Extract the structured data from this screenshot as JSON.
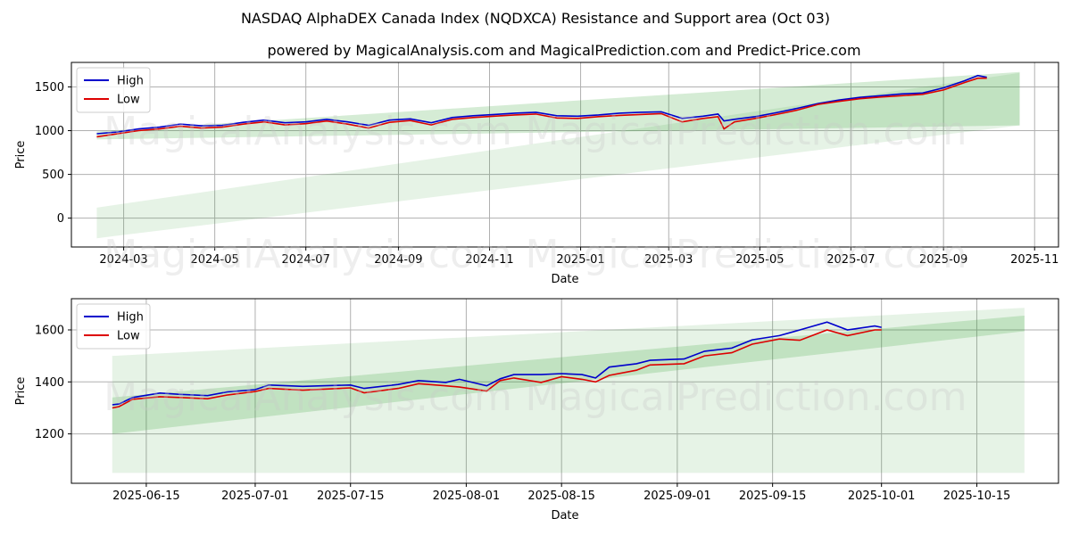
{
  "title": "NASDAQ AlphaDEX Canada Index (NQDXCA) Resistance and Support area (Oct 03)",
  "subtitle": "powered by MagicalAnalysis.com and MagicalPrediction.com and Predict-Price.com",
  "watermarks": [
    "MagicalAnalysis.com",
    "MagicalPrediction.com"
  ],
  "colors": {
    "high": "#0000cc",
    "low": "#dd0000",
    "band": "#2e9e2e"
  },
  "chart_data": [
    {
      "type": "line",
      "xlabel": "Date",
      "ylabel": "Price",
      "xlim": [
        "2024-01-26",
        "2025-11-17"
      ],
      "ylim": [
        -330,
        1780
      ],
      "x_ticks": [
        {
          "date": "2024-03-01",
          "label": "2024-03"
        },
        {
          "date": "2024-05-01",
          "label": "2024-05"
        },
        {
          "date": "2024-07-01",
          "label": "2024-07"
        },
        {
          "date": "2024-09-01",
          "label": "2024-09"
        },
        {
          "date": "2024-11-01",
          "label": "2024-11"
        },
        {
          "date": "2025-01-01",
          "label": "2025-01"
        },
        {
          "date": "2025-03-01",
          "label": "2025-03"
        },
        {
          "date": "2025-05-01",
          "label": "2025-05"
        },
        {
          "date": "2025-07-01",
          "label": "2025-07"
        },
        {
          "date": "2025-09-01",
          "label": "2025-09"
        },
        {
          "date": "2025-11-01",
          "label": "2025-11"
        }
      ],
      "y_ticks": [
        0,
        500,
        1000,
        1500
      ],
      "grid": true,
      "legend": "top-left",
      "series": [
        {
          "name": "High",
          "x": [
            "2024-02-12",
            "2024-02-26",
            "2024-03-11",
            "2024-03-25",
            "2024-04-08",
            "2024-04-22",
            "2024-05-06",
            "2024-05-20",
            "2024-06-03",
            "2024-06-17",
            "2024-07-01",
            "2024-07-15",
            "2024-07-29",
            "2024-08-12",
            "2024-08-26",
            "2024-09-09",
            "2024-09-23",
            "2024-10-07",
            "2024-10-21",
            "2024-11-04",
            "2024-11-18",
            "2024-12-02",
            "2024-12-16",
            "2024-12-30",
            "2025-01-13",
            "2025-01-27",
            "2025-02-10",
            "2025-02-24",
            "2025-03-10",
            "2025-03-24",
            "2025-04-03",
            "2025-04-07",
            "2025-04-14",
            "2025-04-28",
            "2025-05-12",
            "2025-05-26",
            "2025-06-09",
            "2025-06-23",
            "2025-07-07",
            "2025-07-21",
            "2025-08-04",
            "2025-08-18",
            "2025-09-01",
            "2025-09-15",
            "2025-09-24",
            "2025-09-30"
          ],
          "values": [
            965,
            985,
            1020,
            1040,
            1075,
            1055,
            1060,
            1095,
            1120,
            1090,
            1100,
            1130,
            1100,
            1060,
            1120,
            1135,
            1090,
            1150,
            1170,
            1185,
            1200,
            1210,
            1170,
            1165,
            1180,
            1200,
            1210,
            1215,
            1140,
            1165,
            1190,
            1110,
            1130,
            1160,
            1205,
            1255,
            1310,
            1350,
            1380,
            1400,
            1420,
            1430,
            1490,
            1570,
            1630,
            1610
          ]
        },
        {
          "name": "Low",
          "x": [
            "2024-02-12",
            "2024-02-26",
            "2024-03-11",
            "2024-03-25",
            "2024-04-08",
            "2024-04-22",
            "2024-05-06",
            "2024-05-20",
            "2024-06-03",
            "2024-06-17",
            "2024-07-01",
            "2024-07-15",
            "2024-07-29",
            "2024-08-12",
            "2024-08-26",
            "2024-09-09",
            "2024-09-23",
            "2024-10-07",
            "2024-10-21",
            "2024-11-04",
            "2024-11-18",
            "2024-12-02",
            "2024-12-16",
            "2024-12-30",
            "2025-01-13",
            "2025-01-27",
            "2025-02-10",
            "2025-02-24",
            "2025-03-10",
            "2025-03-24",
            "2025-04-03",
            "2025-04-07",
            "2025-04-14",
            "2025-04-28",
            "2025-05-12",
            "2025-05-26",
            "2025-06-09",
            "2025-06-23",
            "2025-07-07",
            "2025-07-21",
            "2025-08-04",
            "2025-08-18",
            "2025-09-01",
            "2025-09-15",
            "2025-09-24",
            "2025-09-30"
          ],
          "values": [
            930,
            965,
            1000,
            1020,
            1050,
            1030,
            1040,
            1075,
            1100,
            1065,
            1080,
            1110,
            1075,
            1030,
            1095,
            1115,
            1065,
            1130,
            1150,
            1165,
            1180,
            1190,
            1145,
            1140,
            1160,
            1175,
            1185,
            1195,
            1100,
            1140,
            1160,
            1020,
            1100,
            1140,
            1185,
            1235,
            1300,
            1335,
            1365,
            1385,
            1400,
            1415,
            1465,
            1550,
            1600,
            1600
          ]
        }
      ],
      "bands": [
        {
          "x": [
            "2024-02-12",
            "2025-10-22"
          ],
          "upper": [
            120,
            1660
          ],
          "lower": [
            -230,
            1060
          ]
        },
        {
          "x": [
            "2024-02-12",
            "2025-10-22"
          ],
          "upper": [
            990,
            1670
          ],
          "lower": [
            900,
            1060
          ]
        }
      ]
    },
    {
      "type": "line",
      "xlabel": "Date",
      "ylabel": "Price",
      "xlim": [
        "2025-06-04",
        "2025-10-27"
      ],
      "ylim": [
        1010,
        1720
      ],
      "x_ticks": [
        {
          "date": "2025-06-15",
          "label": "2025-06-15"
        },
        {
          "date": "2025-07-01",
          "label": "2025-07-01"
        },
        {
          "date": "2025-07-15",
          "label": "2025-07-15"
        },
        {
          "date": "2025-08-01",
          "label": "2025-08-01"
        },
        {
          "date": "2025-08-15",
          "label": "2025-08-15"
        },
        {
          "date": "2025-09-01",
          "label": "2025-09-01"
        },
        {
          "date": "2025-09-15",
          "label": "2025-09-15"
        },
        {
          "date": "2025-10-01",
          "label": "2025-10-01"
        },
        {
          "date": "2025-10-15",
          "label": "2025-10-15"
        }
      ],
      "y_ticks": [
        1200,
        1400,
        1600
      ],
      "grid": true,
      "legend": "top-left",
      "series": [
        {
          "name": "High",
          "x": [
            "2025-06-10",
            "2025-06-11",
            "2025-06-13",
            "2025-06-17",
            "2025-06-20",
            "2025-06-24",
            "2025-06-27",
            "2025-07-01",
            "2025-07-03",
            "2025-07-08",
            "2025-07-15",
            "2025-07-17",
            "2025-07-22",
            "2025-07-25",
            "2025-07-29",
            "2025-07-31",
            "2025-08-04",
            "2025-08-06",
            "2025-08-08",
            "2025-08-12",
            "2025-08-15",
            "2025-08-18",
            "2025-08-20",
            "2025-08-22",
            "2025-08-26",
            "2025-08-28",
            "2025-09-02",
            "2025-09-05",
            "2025-09-09",
            "2025-09-12",
            "2025-09-16",
            "2025-09-19",
            "2025-09-23",
            "2025-09-26",
            "2025-09-30",
            "2025-10-01"
          ],
          "values": [
            1312,
            1315,
            1340,
            1357,
            1352,
            1347,
            1362,
            1370,
            1388,
            1383,
            1388,
            1375,
            1390,
            1405,
            1398,
            1410,
            1385,
            1412,
            1428,
            1428,
            1432,
            1428,
            1415,
            1457,
            1470,
            1483,
            1488,
            1518,
            1530,
            1562,
            1578,
            1600,
            1630,
            1600,
            1615,
            1610
          ]
        },
        {
          "name": "Low",
          "x": [
            "2025-06-10",
            "2025-06-11",
            "2025-06-13",
            "2025-06-17",
            "2025-06-20",
            "2025-06-24",
            "2025-06-27",
            "2025-07-01",
            "2025-07-03",
            "2025-07-08",
            "2025-07-15",
            "2025-07-17",
            "2025-07-22",
            "2025-07-25",
            "2025-07-29",
            "2025-07-31",
            "2025-08-04",
            "2025-08-06",
            "2025-08-08",
            "2025-08-12",
            "2025-08-15",
            "2025-08-18",
            "2025-08-20",
            "2025-08-22",
            "2025-08-26",
            "2025-08-28",
            "2025-09-02",
            "2025-09-05",
            "2025-09-09",
            "2025-09-12",
            "2025-09-16",
            "2025-09-19",
            "2025-09-23",
            "2025-09-26",
            "2025-09-30",
            "2025-10-01"
          ],
          "values": [
            1300,
            1305,
            1333,
            1343,
            1340,
            1335,
            1350,
            1363,
            1375,
            1368,
            1377,
            1358,
            1375,
            1393,
            1385,
            1380,
            1365,
            1405,
            1415,
            1398,
            1420,
            1410,
            1400,
            1425,
            1445,
            1465,
            1470,
            1500,
            1512,
            1545,
            1565,
            1560,
            1600,
            1578,
            1600,
            1600
          ]
        }
      ],
      "bands": [
        {
          "x": [
            "2025-06-10",
            "2025-10-22"
          ],
          "upper": [
            1500,
            1685
          ],
          "lower": [
            1050,
            1050
          ]
        },
        {
          "x": [
            "2025-06-10",
            "2025-10-22"
          ],
          "upper": [
            1340,
            1655
          ],
          "lower": [
            1200,
            1595
          ]
        }
      ]
    }
  ]
}
